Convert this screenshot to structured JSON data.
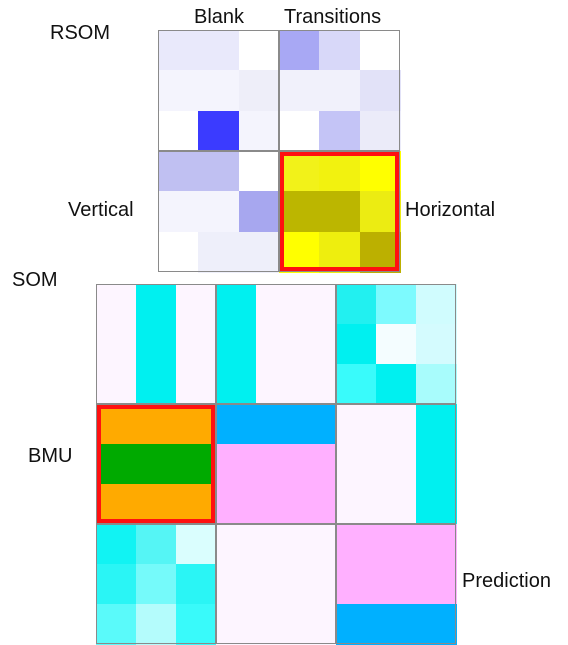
{
  "labels": {
    "rsom": "RSOM",
    "blank": "Blank",
    "transitions": "Transitions",
    "vertical": "Vertical",
    "horizontal": "Horizontal",
    "som": "SOM",
    "bmu": "BMU",
    "prediction": "Prediction"
  },
  "colors": {
    "highlight": "#ff1010",
    "divider": "#8a8a8a"
  },
  "rsom_blocks": [
    {
      "name": "blank",
      "cells": [
        [
          "#e9e9fb",
          "#e9e9fb",
          "#ffffff"
        ],
        [
          "#f4f4fd",
          "#f4f4fd",
          "#eeeef9"
        ],
        [
          "#ffffff",
          "#3b3bff",
          "#f4f4fd"
        ]
      ]
    },
    {
      "name": "transitions",
      "cells": [
        [
          "#a8a8f4",
          "#d8d8f9",
          "#ffffff"
        ],
        [
          "#f1f1fb",
          "#f1f1fb",
          "#e2e2f8"
        ],
        [
          "#ffffff",
          "#c4c4f6",
          "#ebebf9"
        ]
      ]
    },
    {
      "name": "vertical",
      "cells": [
        [
          "#c0c0f2",
          "#c0c0f2",
          "#ffffff"
        ],
        [
          "#f4f4fd",
          "#f4f4fd",
          "#a7a7ef"
        ],
        [
          "#ffffff",
          "#eeeffa",
          "#eeeffa"
        ]
      ]
    },
    {
      "name": "horizontal",
      "cells": [
        [
          "#f2f219",
          "#f2f20f",
          "#ffff00"
        ],
        [
          "#bcb600",
          "#bcb600",
          "#ecec12"
        ],
        [
          "#ffff00",
          "#eeee0e",
          "#bcb000"
        ]
      ]
    }
  ],
  "som_blocks": [
    {
      "name": "som-1",
      "cells": [
        [
          "#fdf5ff",
          "#00f0f0",
          "#fdf5ff"
        ],
        [
          "#fdf5ff",
          "#00f0f0",
          "#fdf5ff"
        ],
        [
          "#fdf5ff",
          "#00f0f0",
          "#fdf5ff"
        ]
      ]
    },
    {
      "name": "som-2",
      "cells": [
        [
          "#00f0f0",
          "#fdf5ff",
          "#fdf5ff"
        ],
        [
          "#00f0f0",
          "#fdf5ff",
          "#fdf5ff"
        ],
        [
          "#00f0f0",
          "#fdf5ff",
          "#fdf5ff"
        ]
      ]
    },
    {
      "name": "som-3",
      "cells": [
        [
          "#22f0f0",
          "#7dfafe",
          "#d0fcfe"
        ],
        [
          "#00f0f0",
          "#f4fdff",
          "#d4fbfe"
        ],
        [
          "#39fbfb",
          "#00f0f0",
          "#a8fcfc"
        ]
      ]
    },
    {
      "name": "bmu",
      "cells": [
        [
          "#ffaa00",
          "#ffaa00",
          "#ffaa00"
        ],
        [
          "#00aa00",
          "#00aa00",
          "#00aa00"
        ],
        [
          "#ffaa00",
          "#ffaa00",
          "#ffaa00"
        ]
      ]
    },
    {
      "name": "som-5",
      "cells": [
        [
          "#00b0ff",
          "#00b0ff",
          "#00b0ff"
        ],
        [
          "#ffb0ff",
          "#ffb0ff",
          "#ffb0ff"
        ],
        [
          "#ffb0ff",
          "#ffb0ff",
          "#ffb0ff"
        ]
      ]
    },
    {
      "name": "som-6",
      "cells": [
        [
          "#fdf5ff",
          "#fdf5ff",
          "#00f0f0"
        ],
        [
          "#fdf5ff",
          "#fdf5ff",
          "#00f0f0"
        ],
        [
          "#fdf5ff",
          "#fdf5ff",
          "#00f0f0"
        ]
      ]
    },
    {
      "name": "som-7",
      "cells": [
        [
          "#11f3f3",
          "#55f5f5",
          "#dafefe"
        ],
        [
          "#2af5f5",
          "#75fafa",
          "#2af5f5"
        ],
        [
          "#5afafa",
          "#b4fcfc",
          "#39fafa"
        ]
      ]
    },
    {
      "name": "som-8",
      "cells": [
        [
          "#fdf5ff",
          "#fdf5ff",
          "#fdf5ff"
        ],
        [
          "#fdf5ff",
          "#fdf5ff",
          "#fdf5ff"
        ],
        [
          "#fdf5ff",
          "#fdf5ff",
          "#fdf5ff"
        ]
      ]
    },
    {
      "name": "prediction",
      "cells": [
        [
          "#ffb0ff",
          "#ffb0ff",
          "#ffb0ff"
        ],
        [
          "#ffb0ff",
          "#ffb0ff",
          "#ffb0ff"
        ],
        [
          "#00b0ff",
          "#00b0ff",
          "#00b0ff"
        ]
      ]
    }
  ]
}
